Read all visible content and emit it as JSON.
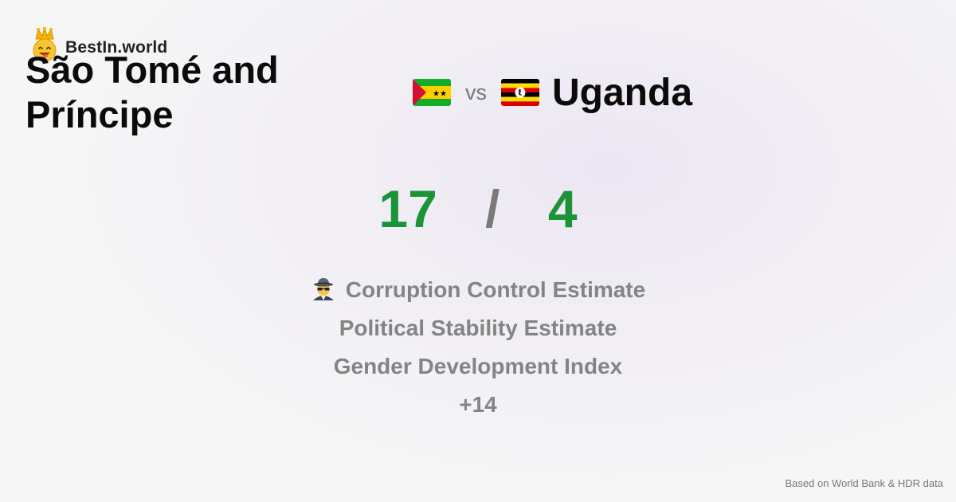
{
  "brand": {
    "name": "BestIn.world",
    "logo_icon": "crowned-smiley-icon"
  },
  "comparison": {
    "left_country": "São Tomé and Príncipe",
    "left_flag": "sao-tome-and-principe-flag-icon",
    "vs_label": "vs",
    "right_country": "Uganda",
    "right_flag": "uganda-flag-icon"
  },
  "score": {
    "left": "17",
    "separator": "/",
    "right": "4",
    "color": "#1c9239"
  },
  "metrics": [
    {
      "label": "Corruption Control Estimate",
      "icon": "spy-detective-emoji-icon"
    },
    {
      "label": "Political Stability Estimate"
    },
    {
      "label": "Gender Development Index"
    },
    {
      "label": "+14"
    }
  ],
  "footer": {
    "source": "Based on World Bank & HDR data"
  }
}
